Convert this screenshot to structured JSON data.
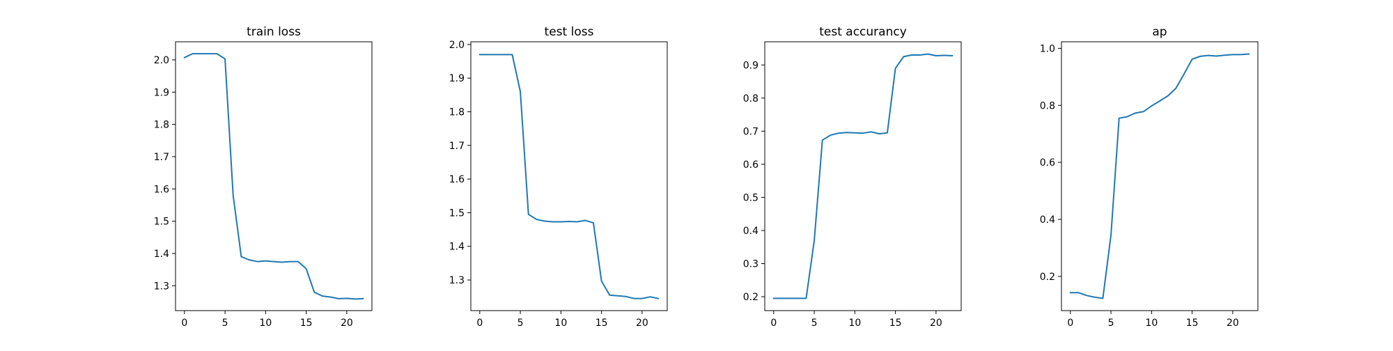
{
  "line_color": "#1f77b4",
  "chart_data": [
    {
      "type": "line",
      "title": "train loss",
      "xlabel": "",
      "ylabel": "",
      "xlim": [
        -1.1,
        23.1
      ],
      "ylim": [
        1.223,
        2.056
      ],
      "xticks": [
        0,
        5,
        10,
        15,
        20
      ],
      "yticks": [
        1.3,
        1.4,
        1.5,
        1.6,
        1.7,
        1.8,
        1.9,
        2.0
      ],
      "ytick_format": 1,
      "grid": false,
      "x": [
        0,
        1,
        2,
        3,
        4,
        5,
        6,
        7,
        8,
        9,
        10,
        11,
        12,
        13,
        14,
        15,
        16,
        17,
        18,
        19,
        20,
        21,
        22
      ],
      "y": [
        2.007,
        2.019,
        2.019,
        2.019,
        2.019,
        2.003,
        1.58,
        1.39,
        1.38,
        1.375,
        1.377,
        1.375,
        1.373,
        1.375,
        1.375,
        1.353,
        1.28,
        1.268,
        1.265,
        1.26,
        1.261,
        1.259,
        1.26
      ]
    },
    {
      "type": "line",
      "title": "test loss",
      "xlabel": "",
      "ylabel": "",
      "xlim": [
        -1.1,
        23.1
      ],
      "ylim": [
        1.209,
        2.008
      ],
      "xticks": [
        0,
        5,
        10,
        15,
        20
      ],
      "yticks": [
        1.3,
        1.4,
        1.5,
        1.6,
        1.7,
        1.8,
        1.9,
        2.0
      ],
      "ytick_format": 1,
      "grid": false,
      "x": [
        0,
        1,
        2,
        3,
        4,
        5,
        6,
        7,
        8,
        9,
        10,
        11,
        12,
        13,
        14,
        15,
        16,
        17,
        18,
        19,
        20,
        21,
        22
      ],
      "y": [
        1.97,
        1.97,
        1.97,
        1.97,
        1.97,
        1.86,
        1.495,
        1.48,
        1.475,
        1.473,
        1.473,
        1.474,
        1.473,
        1.477,
        1.47,
        1.297,
        1.255,
        1.253,
        1.251,
        1.245,
        1.245,
        1.25,
        1.245
      ]
    },
    {
      "type": "line",
      "title": "test accurancy",
      "xlabel": "",
      "ylabel": "",
      "xlim": [
        -1.1,
        23.1
      ],
      "ylim": [
        0.158,
        0.97
      ],
      "xticks": [
        0,
        5,
        10,
        15,
        20
      ],
      "yticks": [
        0.2,
        0.3,
        0.4,
        0.5,
        0.6,
        0.7,
        0.8,
        0.9
      ],
      "ytick_format": 1,
      "grid": false,
      "x": [
        0,
        1,
        2,
        3,
        4,
        5,
        6,
        7,
        8,
        9,
        10,
        11,
        12,
        13,
        14,
        15,
        16,
        17,
        18,
        19,
        20,
        21,
        22
      ],
      "y": [
        0.195,
        0.195,
        0.195,
        0.195,
        0.195,
        0.37,
        0.673,
        0.688,
        0.694,
        0.696,
        0.695,
        0.694,
        0.698,
        0.692,
        0.695,
        0.89,
        0.925,
        0.93,
        0.93,
        0.933,
        0.928,
        0.929,
        0.928
      ]
    },
    {
      "type": "line",
      "title": "ap",
      "xlabel": "",
      "ylabel": "",
      "xlim": [
        -1.1,
        23.1
      ],
      "ylim": [
        0.08,
        1.023
      ],
      "xticks": [
        0,
        5,
        10,
        15,
        20
      ],
      "yticks": [
        0.2,
        0.4,
        0.6,
        0.8,
        1.0
      ],
      "ytick_format": 1,
      "grid": false,
      "x": [
        0,
        1,
        2,
        3,
        4,
        5,
        6,
        7,
        8,
        9,
        10,
        11,
        12,
        13,
        14,
        15,
        16,
        17,
        18,
        19,
        20,
        21,
        22
      ],
      "y": [
        0.143,
        0.143,
        0.133,
        0.127,
        0.123,
        0.345,
        0.755,
        0.76,
        0.773,
        0.778,
        0.798,
        0.815,
        0.833,
        0.86,
        0.91,
        0.962,
        0.972,
        0.975,
        0.973,
        0.976,
        0.978,
        0.978,
        0.98
      ]
    }
  ]
}
